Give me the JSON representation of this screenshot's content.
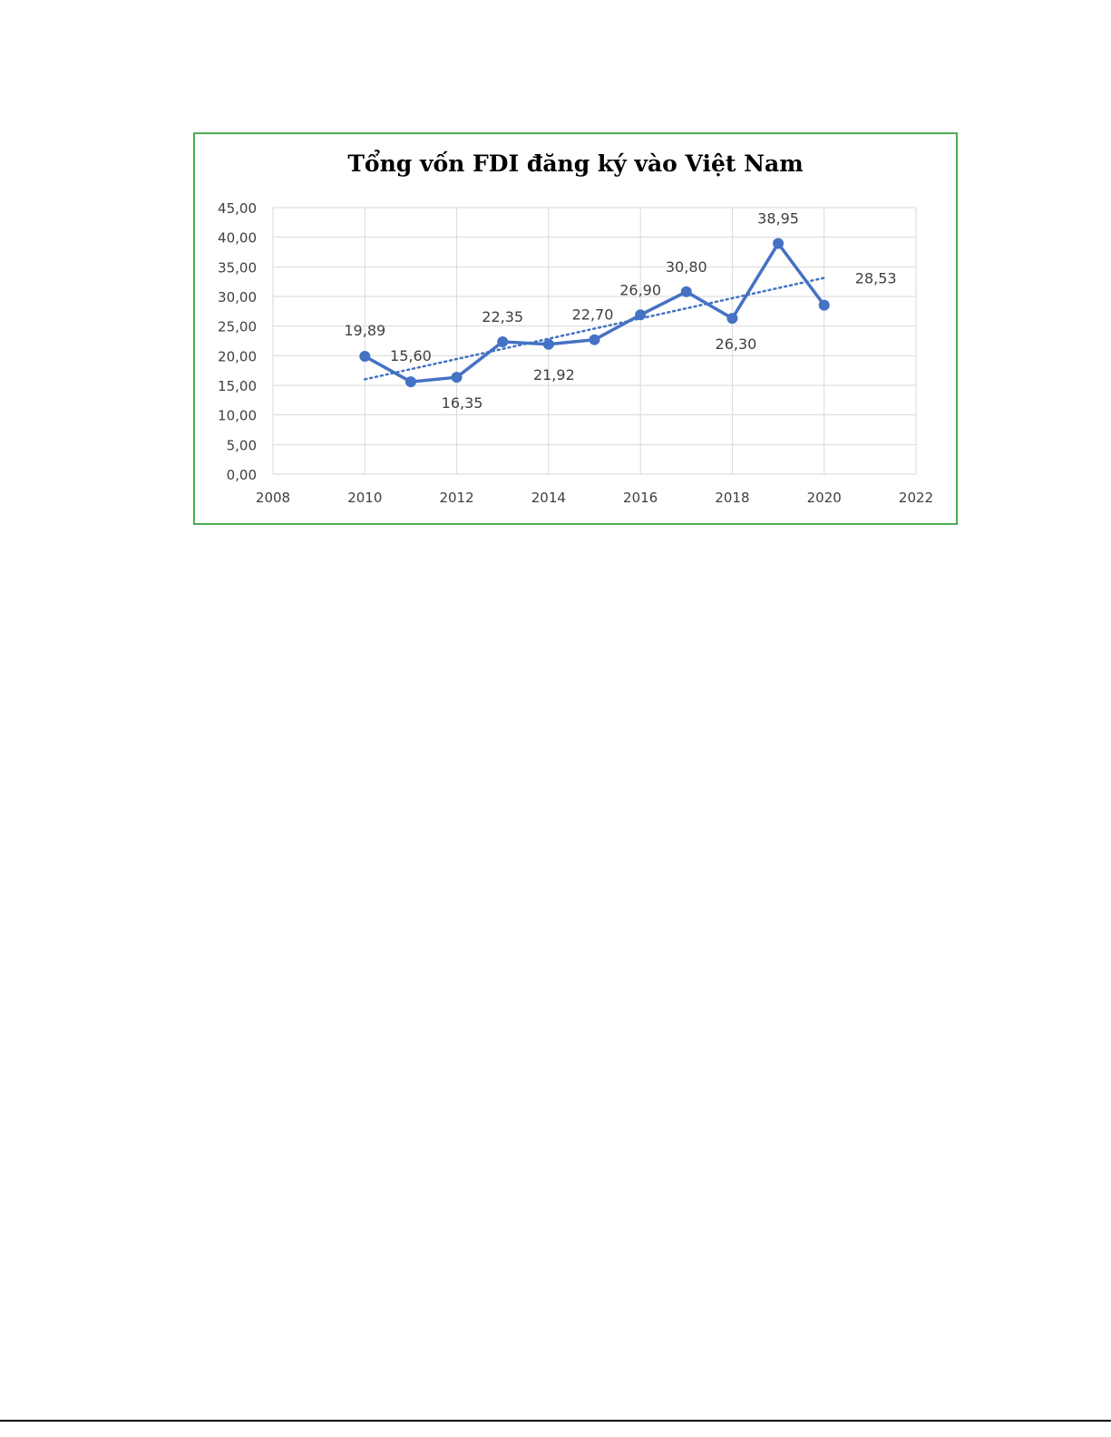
{
  "chart_data": {
    "type": "line",
    "title": "Tổng vốn FDI đăng ký vào Việt Nam",
    "xlabel": "",
    "ylabel": "",
    "x": [
      2010,
      2011,
      2012,
      2013,
      2014,
      2015,
      2016,
      2017,
      2018,
      2019,
      2020
    ],
    "series": [
      {
        "values": [
          19.89,
          15.6,
          16.35,
          22.35,
          21.92,
          22.7,
          26.9,
          30.8,
          26.3,
          38.95,
          28.53
        ],
        "data_labels": [
          "19,89",
          "15,60",
          "16,35",
          "22,35",
          "21,92",
          "22,70",
          "26,90",
          "30,80",
          "26,30",
          "38,95",
          "28,53"
        ],
        "color": "#4472c4",
        "markers": true
      }
    ],
    "trendline": {
      "type": "linear",
      "style": "dotted",
      "color": "#4472c4"
    },
    "xlim": [
      2008,
      2022
    ],
    "ylim": [
      0,
      45
    ],
    "x_ticks": [
      "2008",
      "2010",
      "2012",
      "2014",
      "2016",
      "2018",
      "2020",
      "2022"
    ],
    "y_ticks": [
      "0,00",
      "5,00",
      "10,00",
      "15,00",
      "20,00",
      "25,00",
      "30,00",
      "35,00",
      "40,00",
      "45,00"
    ],
    "grid": true,
    "legend": "none"
  },
  "colors": {
    "frame_border": "#4caf50",
    "grid": "#d9d9d9",
    "line": "#4472c4",
    "text": "#404040"
  }
}
